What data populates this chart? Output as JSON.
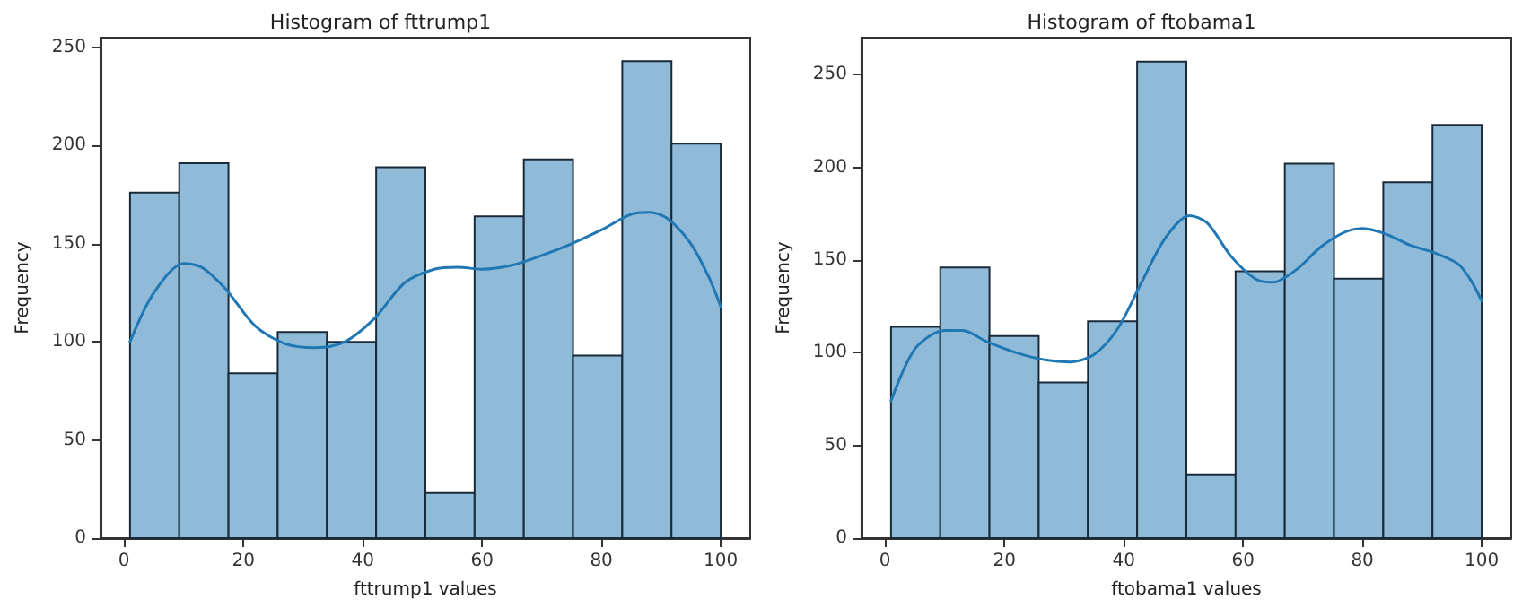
{
  "chart_data": [
    {
      "type": "histogram",
      "title": "Histogram of fttrump1",
      "xlabel": "fttrump1 values",
      "ylabel": "Frequency",
      "bins": [
        1,
        9.25,
        17.5,
        25.75,
        34,
        42.25,
        50.5,
        58.75,
        67,
        75.25,
        83.5,
        91.75,
        100
      ],
      "xlim": [
        -3.95,
        104.95
      ],
      "xticks": [
        0,
        20,
        40,
        60,
        80,
        100
      ],
      "ylim": [
        0,
        255
      ],
      "yticks": [
        0,
        50,
        100,
        150,
        200,
        250
      ],
      "grid": false,
      "series": [
        {
          "color": "#8fbbd9",
          "values": [
            176,
            191,
            84,
            105,
            100,
            189,
            23,
            164,
            193,
            93,
            243,
            201
          ]
        },
        {
          "type": "line",
          "color": "#1f77b4",
          "x": [
            1,
            5,
            10,
            13,
            17,
            22,
            27,
            32,
            37,
            42,
            47,
            52,
            56,
            60,
            65,
            70,
            75,
            80,
            85,
            88,
            91,
            95,
            98,
            100
          ],
          "values": [
            100,
            125,
            140,
            138,
            127,
            108,
            99,
            97,
            100,
            112,
            130,
            137,
            138,
            137,
            139,
            144,
            150,
            157,
            165,
            166,
            163,
            150,
            133,
            118
          ]
        }
      ]
    },
    {
      "type": "histogram",
      "title": "Histogram of ftobama1",
      "xlabel": "ftobama1 values",
      "ylabel": "Frequency",
      "bins": [
        1,
        9.25,
        17.5,
        25.75,
        34,
        42.25,
        50.5,
        58.75,
        67,
        75.25,
        83.5,
        91.75,
        100
      ],
      "xlim": [
        -3.95,
        104.95
      ],
      "xticks": [
        0,
        20,
        40,
        60,
        80,
        100
      ],
      "ylim": [
        0,
        270
      ],
      "yticks": [
        0,
        50,
        100,
        150,
        200,
        250
      ],
      "grid": false,
      "series": [
        {
          "color": "#8fbbd9",
          "values": [
            114,
            146,
            109,
            84,
            117,
            257,
            34,
            144,
            202,
            140,
            192,
            223
          ]
        },
        {
          "type": "line",
          "color": "#1f77b4",
          "x": [
            1,
            5,
            10,
            13,
            17,
            22,
            27,
            31,
            35,
            39,
            43,
            47,
            51,
            54,
            58,
            62,
            65,
            69,
            73,
            77,
            80,
            84,
            88,
            92,
            96,
            98,
            100
          ],
          "values": [
            74,
            102,
            112,
            112,
            106,
            100,
            96,
            95,
            99,
            113,
            138,
            162,
            174,
            170,
            152,
            140,
            138,
            145,
            157,
            165,
            167,
            164,
            158,
            154,
            148,
            140,
            128
          ]
        }
      ]
    }
  ]
}
